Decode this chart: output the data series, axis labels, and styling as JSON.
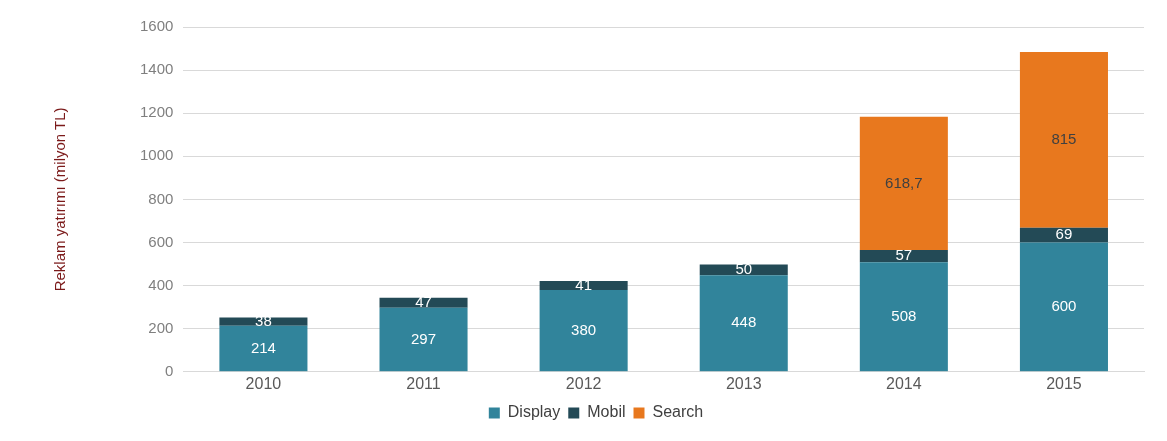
{
  "chart_data": {
    "type": "bar",
    "stacked": true,
    "ylabel": "Reklam yatırımı (milyon TL)",
    "categories": [
      "2010",
      "2011",
      "2012",
      "2013",
      "2014",
      "2015"
    ],
    "series": [
      {
        "name": "Display",
        "color": "#31849b",
        "values": [
          214,
          297,
          380,
          448,
          508,
          600
        ],
        "value_labels": [
          "214",
          "297",
          "380",
          "448",
          "508",
          "600"
        ]
      },
      {
        "name": "Mobil",
        "color": "#234a56",
        "values": [
          38,
          47,
          41,
          50,
          57,
          69
        ],
        "value_labels": [
          "38",
          "47",
          "41",
          "50",
          "57",
          "69"
        ]
      },
      {
        "name": "Search",
        "color": "#e8781e",
        "values": [
          null,
          null,
          null,
          null,
          618.7,
          815
        ],
        "value_labels": [
          null,
          null,
          null,
          null,
          "618,7",
          "815"
        ]
      }
    ],
    "ylim": [
      0,
      1600
    ],
    "yticks": [
      0,
      200,
      400,
      600,
      800,
      1000,
      1200,
      1400,
      1600
    ],
    "grid": "y",
    "legend": "bottom"
  }
}
